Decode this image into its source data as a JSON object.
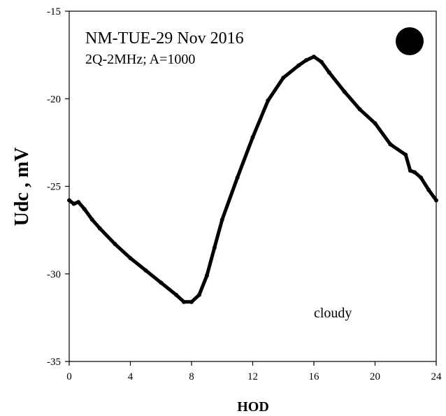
{
  "chart_data": {
    "type": "line",
    "title": "NM-TUE-29 Nov 2016",
    "subtitle": "2Q-2MHz; A=1000",
    "annotation": "cloudy",
    "xlabel": "HOD",
    "ylabel": "Udc  , mV",
    "xlim": [
      0,
      24
    ],
    "ylim": [
      -35,
      -15
    ],
    "x_ticks": [
      0,
      4,
      8,
      12,
      16,
      20,
      24
    ],
    "y_ticks": [
      -35,
      -30,
      -25,
      -20,
      -15
    ],
    "x_tick_labels": [
      "0",
      "4",
      "8",
      "12",
      "16",
      "20",
      "24"
    ],
    "y_tick_labels": [
      "-35",
      "-30",
      "-25",
      "-20",
      "-15"
    ],
    "grid": false,
    "marker": "filled-circle",
    "line_color": "#000000",
    "series": [
      {
        "x": [
          0,
          0.3,
          0.6,
          1.0,
          1.5,
          2.0,
          3.0,
          4.0,
          5.0,
          6.0,
          7.0,
          7.5,
          8.0,
          8.5,
          9.0,
          9.5,
          10.0,
          11.0,
          12.0,
          13.0,
          14.0,
          15.0,
          15.5,
          16.0,
          16.5,
          17.0,
          18.0,
          19.0,
          20.0,
          21.0,
          22.0,
          22.3,
          22.6,
          23.0,
          23.5,
          24.0
        ],
        "y": [
          -25.8,
          -26.0,
          -25.9,
          -26.3,
          -26.9,
          -27.4,
          -28.3,
          -29.1,
          -29.8,
          -30.5,
          -31.2,
          -31.6,
          -31.6,
          -31.2,
          -30.1,
          -28.5,
          -26.9,
          -24.5,
          -22.2,
          -20.1,
          -18.8,
          -18.1,
          -17.8,
          -17.6,
          -17.9,
          -18.5,
          -19.6,
          -20.6,
          -21.4,
          -22.6,
          -23.2,
          -24.1,
          -24.2,
          -24.5,
          -25.2,
          -25.8
        ]
      }
    ]
  }
}
